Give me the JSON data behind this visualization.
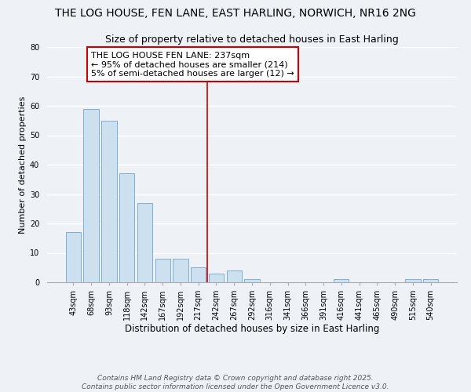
{
  "title": "THE LOG HOUSE, FEN LANE, EAST HARLING, NORWICH, NR16 2NG",
  "subtitle": "Size of property relative to detached houses in East Harling",
  "xlabel": "Distribution of detached houses by size in East Harling",
  "ylabel": "Number of detached properties",
  "bar_labels": [
    "43sqm",
    "68sqm",
    "93sqm",
    "118sqm",
    "142sqm",
    "167sqm",
    "192sqm",
    "217sqm",
    "242sqm",
    "267sqm",
    "292sqm",
    "316sqm",
    "341sqm",
    "366sqm",
    "391sqm",
    "416sqm",
    "441sqm",
    "465sqm",
    "490sqm",
    "515sqm",
    "540sqm"
  ],
  "bar_values": [
    17,
    59,
    55,
    37,
    27,
    8,
    8,
    5,
    3,
    4,
    1,
    0,
    0,
    0,
    0,
    1,
    0,
    0,
    0,
    1,
    1
  ],
  "bar_color": "#cce0f0",
  "bar_edge_color": "#7aafd4",
  "vline_x_index": 7.5,
  "vline_color": "#cc0000",
  "annotation_title": "THE LOG HOUSE FEN LANE: 237sqm",
  "annotation_line1": "← 95% of detached houses are smaller (214)",
  "annotation_line2": "5% of semi-detached houses are larger (12) →",
  "annotation_box_facecolor": "#ffffff",
  "annotation_box_edgecolor": "#cc0000",
  "ylim": [
    0,
    80
  ],
  "yticks": [
    0,
    10,
    20,
    30,
    40,
    50,
    60,
    70,
    80
  ],
  "background_color": "#eef2f7",
  "grid_color": "#ffffff",
  "footer1": "Contains HM Land Registry data © Crown copyright and database right 2025.",
  "footer2": "Contains public sector information licensed under the Open Government Licence v3.0.",
  "title_fontsize": 10,
  "xlabel_fontsize": 8.5,
  "ylabel_fontsize": 8,
  "tick_fontsize": 7,
  "annotation_fontsize": 8,
  "footer_fontsize": 6.5
}
